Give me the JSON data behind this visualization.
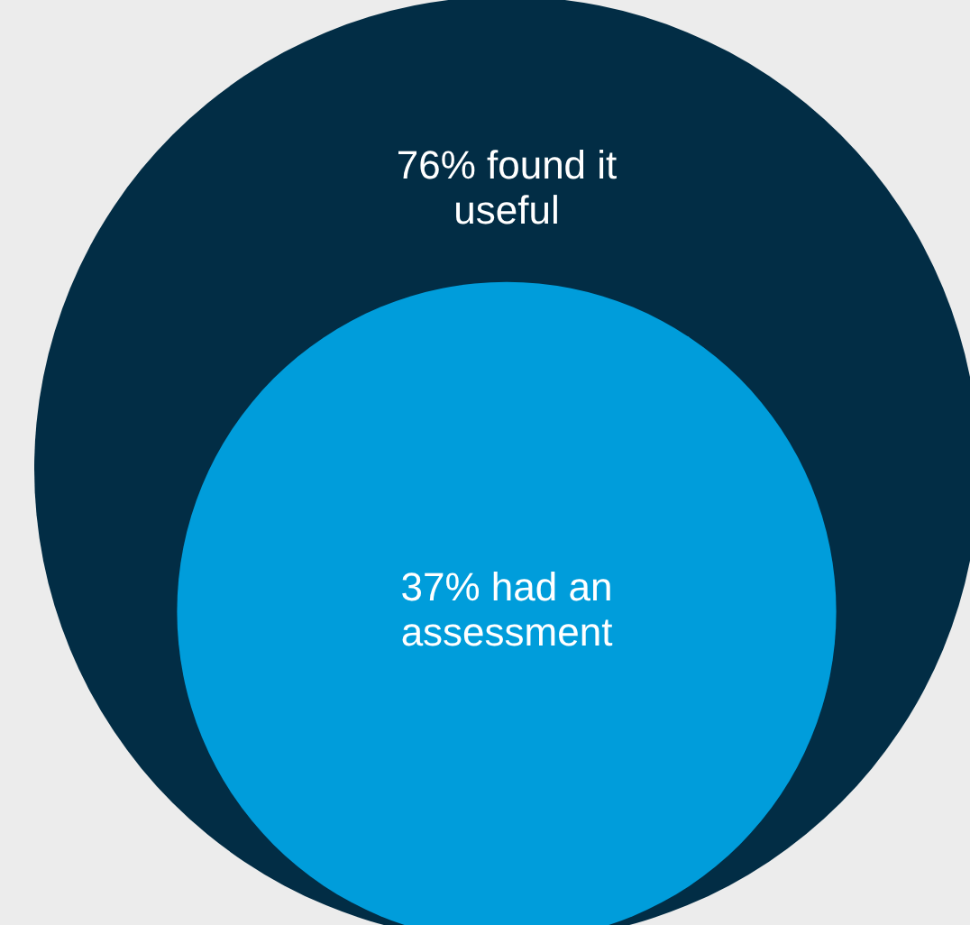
{
  "chart_data": {
    "type": "other",
    "categories": [
      "found it useful",
      "had an assessment"
    ],
    "values": [
      76,
      37
    ],
    "value_labels": [
      "76%",
      "37%"
    ],
    "colors": [
      "#022d45",
      "#009ddb"
    ]
  }
}
